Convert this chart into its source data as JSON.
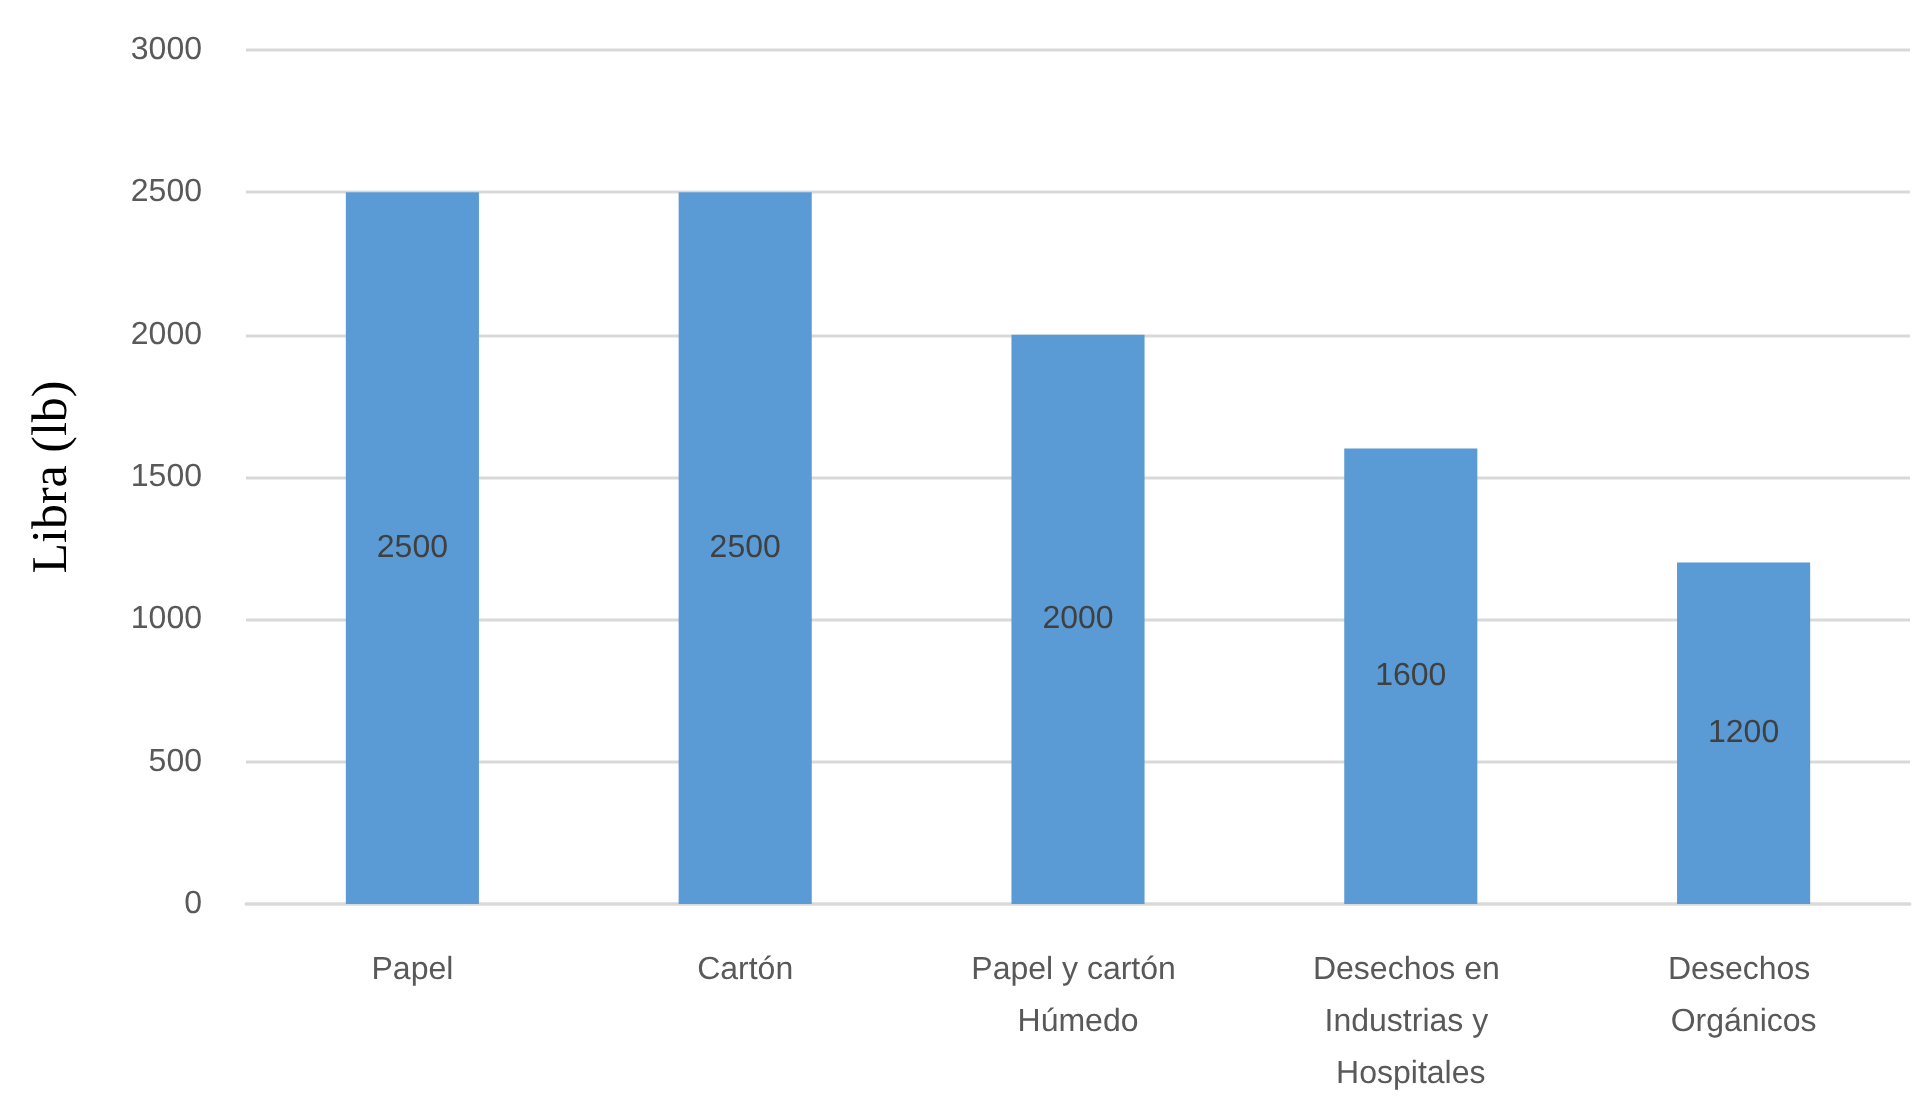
{
  "chart_data": {
    "type": "bar",
    "ylabel": "Libra (lb)",
    "categories": [
      "Papel",
      "Cartón",
      "Papel y cartón Húmedo",
      "Desechos en Industrias y Hospitales",
      "Desechos Orgánicos"
    ],
    "values": [
      2500,
      2500,
      2000,
      1600,
      1200
    ],
    "color": "#5b9bd5",
    "ylim": [
      0,
      3000
    ],
    "yticks": [
      0,
      500,
      1000,
      1500,
      2000,
      2500,
      3000
    ],
    "grid": "y",
    "data_labels": true
  }
}
